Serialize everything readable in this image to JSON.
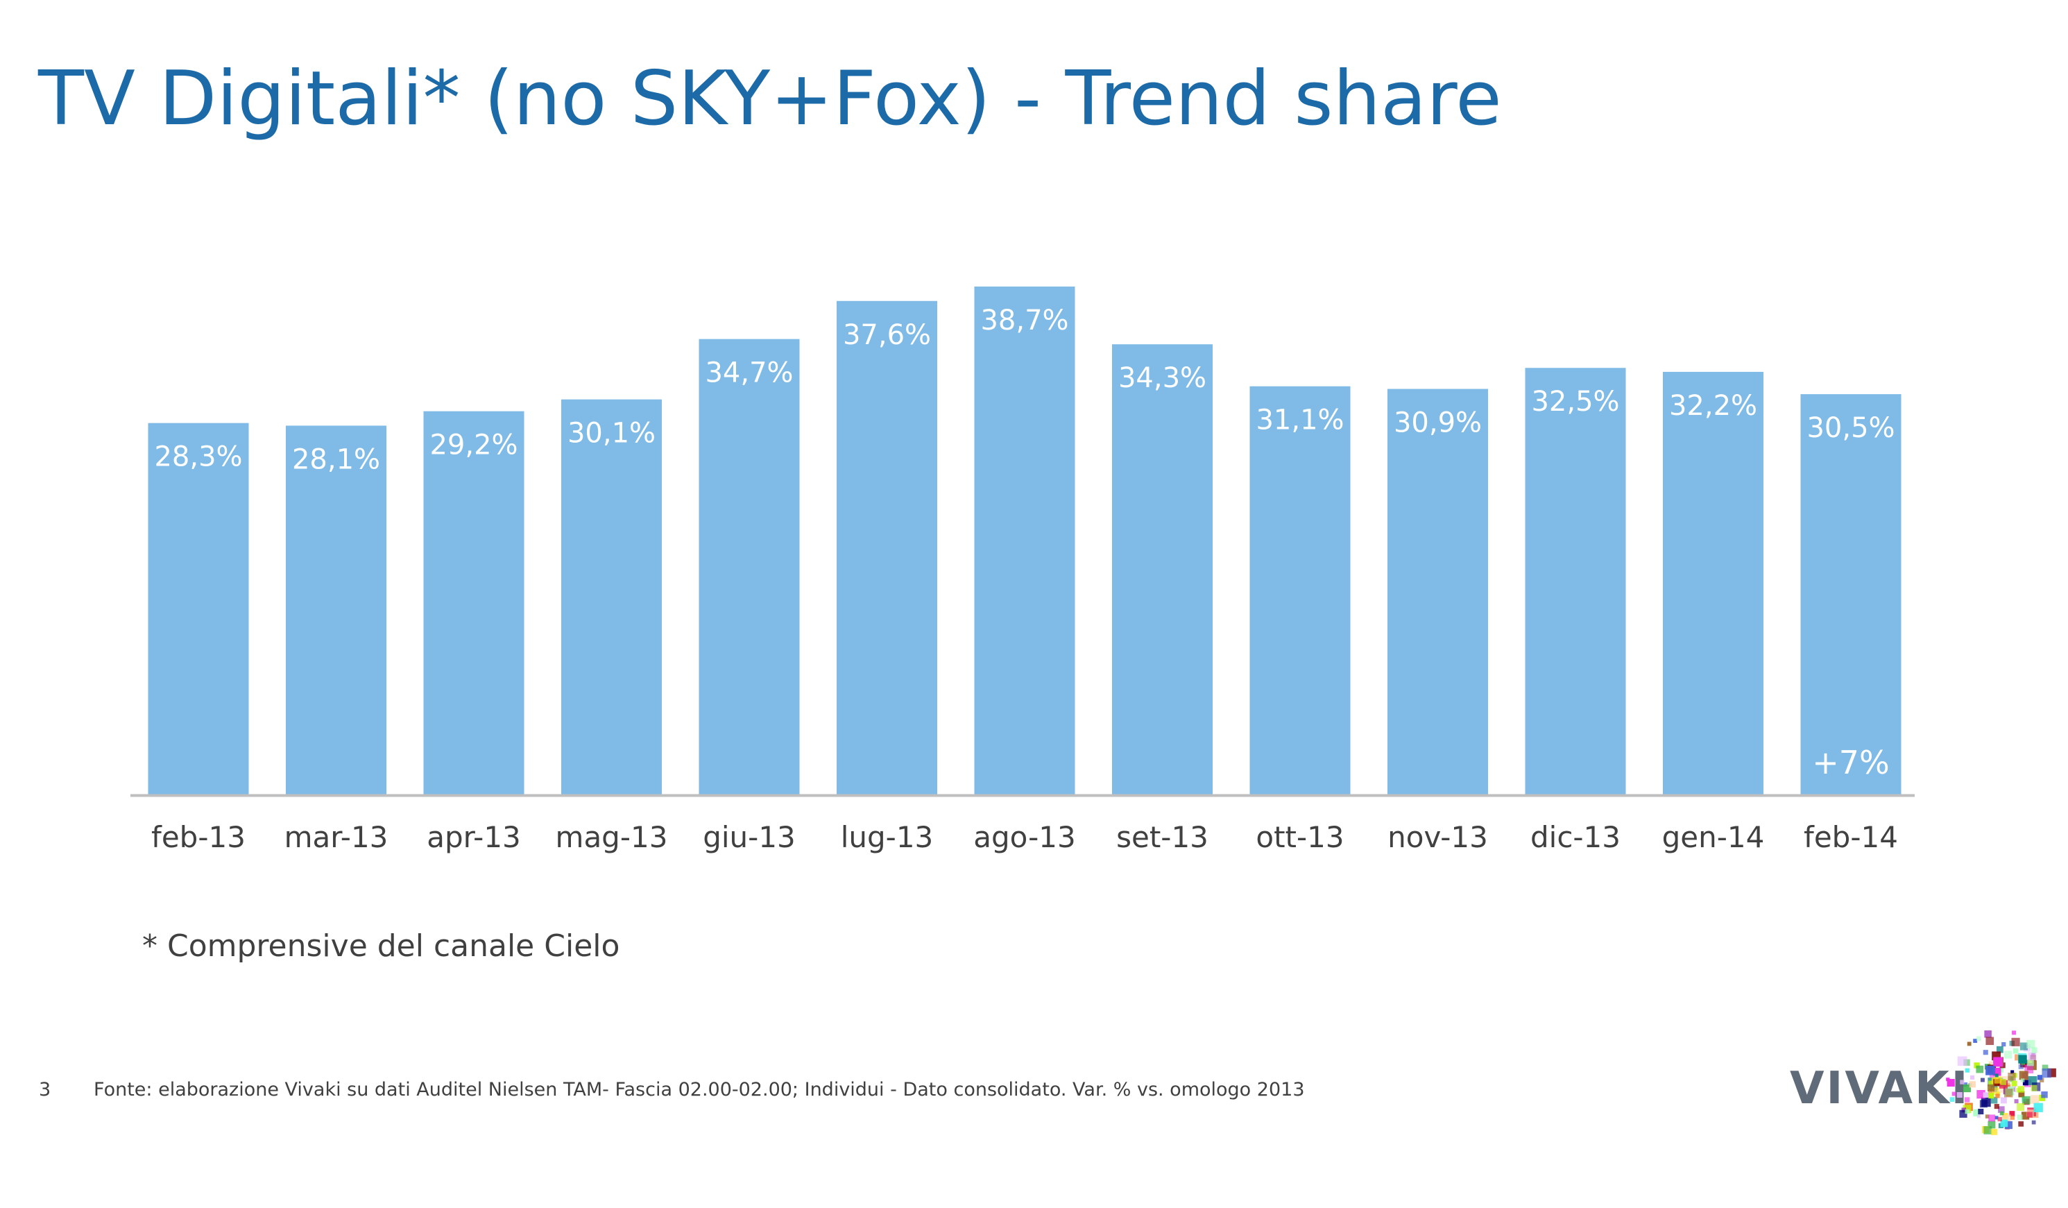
{
  "title": "TV Digitali* (no SKY+Fox) - Trend share",
  "footnote": "* Comprensive del canale Cielo",
  "page_number": "3",
  "source": "Fonte: elaborazione Vivaki su dati Auditel Nielsen TAM- Fascia 02.00-02.00; Individui - Dato consolidato. Var. % vs. omologo 2013",
  "logo": {
    "text": "VIVAKI",
    "icon": "vivaki-starburst-icon"
  },
  "colors": {
    "title": "#1c6ba8",
    "bar": "#7fbbe6",
    "bar_label": "#ffffff",
    "axis_line": "#bfbfbf",
    "tick_label": "#404040"
  },
  "chart_data": {
    "type": "bar",
    "categories": [
      "feb-13",
      "mar-13",
      "apr-13",
      "mag-13",
      "giu-13",
      "lug-13",
      "ago-13",
      "set-13",
      "ott-13",
      "nov-13",
      "dic-13",
      "gen-14",
      "feb-14"
    ],
    "values": [
      28.3,
      28.1,
      29.2,
      30.1,
      34.7,
      37.6,
      38.7,
      34.3,
      31.1,
      30.9,
      32.5,
      32.2,
      30.5
    ],
    "data_labels": [
      "28,3%",
      "28,1%",
      "29,2%",
      "30,1%",
      "34,7%",
      "37,6%",
      "38,7%",
      "34,3%",
      "31,1%",
      "30,9%",
      "32,5%",
      "32,2%",
      "30,5%"
    ],
    "annotation": {
      "category": "feb-14",
      "text": "+7%"
    },
    "title": "",
    "xlabel": "",
    "ylabel": "",
    "ylim": [
      0,
      41.5
    ],
    "grid": false,
    "legend": "none"
  }
}
